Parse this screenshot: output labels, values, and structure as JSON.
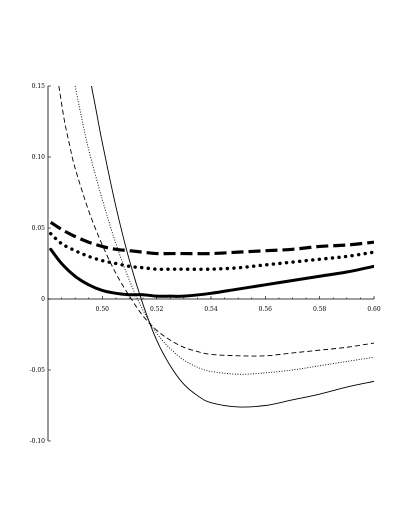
{
  "chart_data": {
    "type": "line",
    "title": "",
    "xlabel": "",
    "ylabel": "",
    "xlim": [
      0.48,
      0.6
    ],
    "ylim": [
      -0.1,
      0.15
    ],
    "x_ticks": [
      0.5,
      0.52,
      0.54,
      0.56,
      0.58,
      0.6
    ],
    "x_tick_labels": [
      "0.50",
      "0.52",
      "0.54",
      "0.56",
      "0.58",
      "0.60"
    ],
    "y_ticks": [
      0.15,
      0.1,
      0.05,
      0,
      -0.05,
      -0.1
    ],
    "y_tick_labels": [
      "0.15",
      "0.10",
      "0.05",
      "0",
      "-0.05",
      "-0.10"
    ],
    "grid": false,
    "legend": "none",
    "colors": {
      "line": "#000000"
    },
    "series": [
      {
        "style": "thick-long-dash",
        "x": [
          0.481,
          0.485,
          0.49,
          0.495,
          0.5,
          0.505,
          0.51,
          0.515,
          0.52,
          0.525,
          0.53,
          0.54,
          0.55,
          0.56,
          0.57,
          0.58,
          0.59,
          0.6
        ],
        "y": [
          0.054,
          0.049,
          0.044,
          0.04,
          0.037,
          0.035,
          0.034,
          0.033,
          0.032,
          0.032,
          0.032,
          0.032,
          0.033,
          0.034,
          0.035,
          0.037,
          0.038,
          0.04
        ]
      },
      {
        "style": "thick-dotted",
        "x": [
          0.481,
          0.485,
          0.49,
          0.495,
          0.5,
          0.505,
          0.51,
          0.515,
          0.52,
          0.525,
          0.53,
          0.54,
          0.55,
          0.56,
          0.57,
          0.58,
          0.59,
          0.6
        ],
        "y": [
          0.046,
          0.039,
          0.034,
          0.03,
          0.027,
          0.025,
          0.023,
          0.022,
          0.021,
          0.021,
          0.021,
          0.021,
          0.022,
          0.024,
          0.026,
          0.028,
          0.03,
          0.033
        ]
      },
      {
        "style": "thick-solid",
        "x": [
          0.481,
          0.485,
          0.49,
          0.495,
          0.5,
          0.505,
          0.51,
          0.515,
          0.52,
          0.525,
          0.53,
          0.54,
          0.55,
          0.56,
          0.57,
          0.58,
          0.59,
          0.6
        ],
        "y": [
          0.035,
          0.025,
          0.016,
          0.01,
          0.006,
          0.004,
          0.003,
          0.003,
          0.002,
          0.002,
          0.002,
          0.004,
          0.007,
          0.01,
          0.013,
          0.016,
          0.019,
          0.023
        ]
      },
      {
        "style": "thin-dashed",
        "x": [
          0.484,
          0.486,
          0.488,
          0.49,
          0.495,
          0.5,
          0.505,
          0.51,
          0.515,
          0.52,
          0.525,
          0.53,
          0.535,
          0.54,
          0.55,
          0.56,
          0.57,
          0.58,
          0.59,
          0.6
        ],
        "y": [
          0.15,
          0.126,
          0.108,
          0.092,
          0.062,
          0.038,
          0.018,
          0.002,
          -0.012,
          -0.022,
          -0.029,
          -0.034,
          -0.037,
          -0.039,
          -0.04,
          -0.04,
          -0.038,
          -0.036,
          -0.034,
          -0.031
        ]
      },
      {
        "style": "thin-dotted",
        "x": [
          0.49,
          0.492,
          0.495,
          0.5,
          0.505,
          0.51,
          0.515,
          0.52,
          0.525,
          0.53,
          0.535,
          0.54,
          0.55,
          0.56,
          0.57,
          0.58,
          0.59,
          0.6
        ],
        "y": [
          0.15,
          0.131,
          0.105,
          0.07,
          0.039,
          0.013,
          -0.008,
          -0.024,
          -0.035,
          -0.043,
          -0.048,
          -0.051,
          -0.053,
          -0.052,
          -0.05,
          -0.047,
          -0.044,
          -0.041
        ]
      },
      {
        "style": "thin-solid",
        "x": [
          0.496,
          0.498,
          0.5,
          0.505,
          0.51,
          0.515,
          0.52,
          0.525,
          0.53,
          0.535,
          0.54,
          0.55,
          0.56,
          0.57,
          0.58,
          0.59,
          0.6
        ],
        "y": [
          0.15,
          0.13,
          0.11,
          0.065,
          0.027,
          -0.004,
          -0.029,
          -0.047,
          -0.06,
          -0.068,
          -0.073,
          -0.076,
          -0.075,
          -0.071,
          -0.067,
          -0.062,
          -0.058
        ]
      }
    ]
  }
}
